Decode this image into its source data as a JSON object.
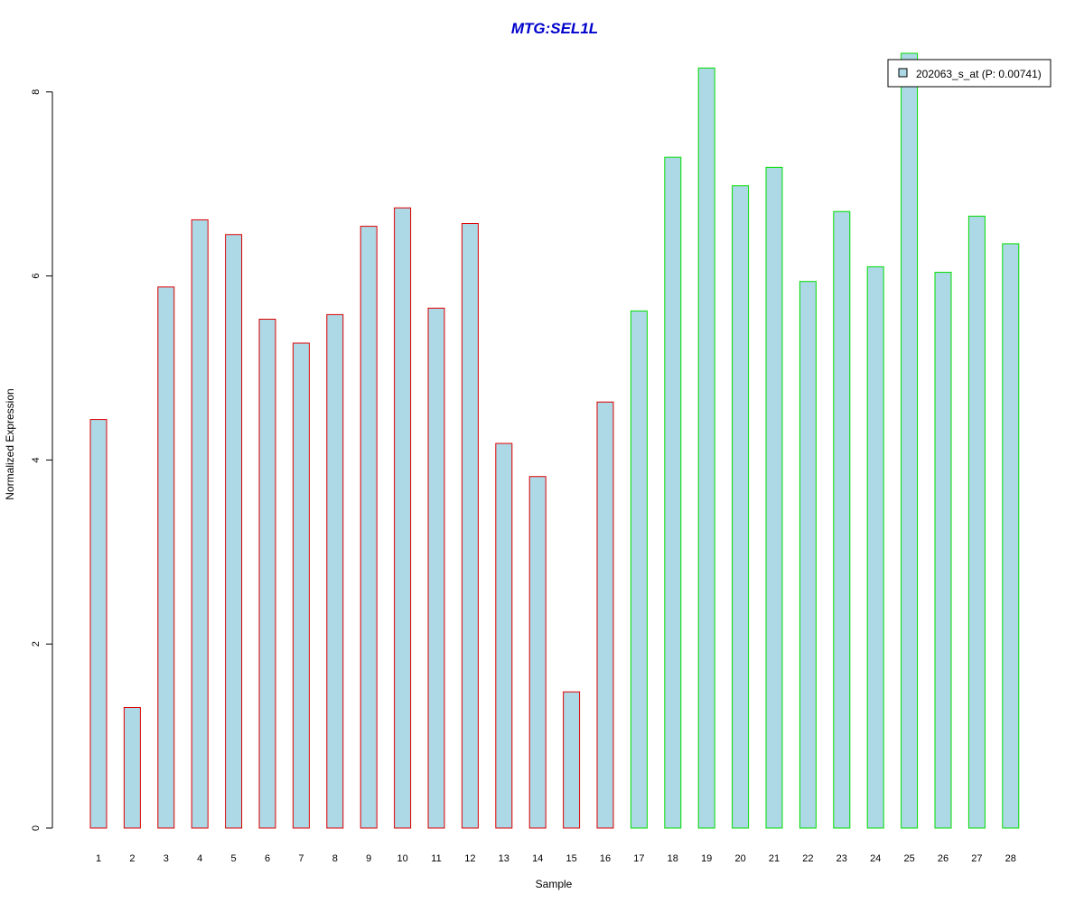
{
  "chart_data": {
    "type": "bar",
    "title": "MTG:SEL1L",
    "xlabel": "Sample",
    "ylabel": "Normalized Expression",
    "categories": [
      "1",
      "2",
      "3",
      "4",
      "5",
      "6",
      "7",
      "8",
      "9",
      "10",
      "11",
      "12",
      "13",
      "14",
      "15",
      "16",
      "17",
      "18",
      "19",
      "20",
      "21",
      "22",
      "23",
      "24",
      "25",
      "26",
      "27",
      "28"
    ],
    "series": [
      {
        "name": "202063_s_at (P: 0.00741)",
        "values": [
          4.44,
          1.31,
          5.88,
          6.61,
          6.45,
          5.53,
          5.27,
          5.58,
          6.54,
          6.74,
          5.65,
          6.57,
          4.18,
          3.82,
          1.48,
          4.63,
          5.62,
          7.29,
          8.26,
          6.98,
          7.18,
          5.94,
          6.7,
          6.1,
          8.42,
          6.04,
          6.65,
          6.35
        ]
      }
    ],
    "group_outline_colors": [
      "#dd0000",
      "#dd0000",
      "#dd0000",
      "#dd0000",
      "#dd0000",
      "#dd0000",
      "#dd0000",
      "#dd0000",
      "#dd0000",
      "#dd0000",
      "#dd0000",
      "#dd0000",
      "#dd0000",
      "#dd0000",
      "#dd0000",
      "#dd0000",
      "#00dd00",
      "#00dd00",
      "#00dd00",
      "#00dd00",
      "#00dd00",
      "#00dd00",
      "#00dd00",
      "#00dd00",
      "#00dd00",
      "#00dd00",
      "#00dd00",
      "#00dd00"
    ],
    "bar_fill_color": "#add8e6",
    "title_color": "#0000cc",
    "ylim": [
      0,
      8.42
    ],
    "yticks": [
      "0",
      "2",
      "4",
      "6",
      "8"
    ],
    "grid": false,
    "legend_position": "top-right"
  }
}
